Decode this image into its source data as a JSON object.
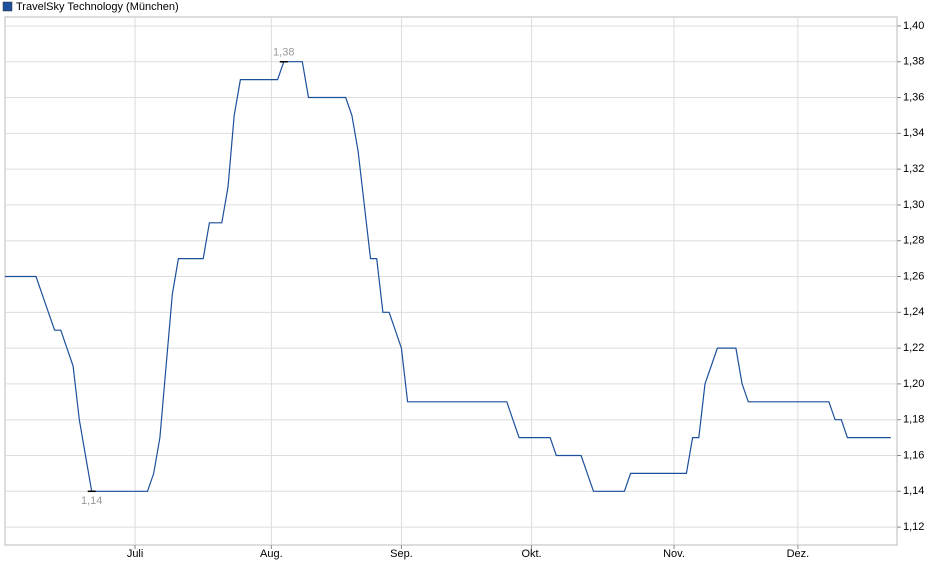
{
  "chart_data": {
    "type": "line",
    "categories": [
      null,
      null,
      null,
      null,
      null,
      null,
      null,
      null,
      null,
      null,
      null,
      null,
      null,
      null,
      null,
      null,
      null,
      null,
      null,
      null,
      null,
      "Juli",
      null,
      null,
      null,
      null,
      null,
      null,
      null,
      null,
      null,
      null,
      null,
      null,
      null,
      null,
      null,
      null,
      null,
      null,
      null,
      null,
      null,
      "Aug.",
      null,
      null,
      null,
      null,
      null,
      null,
      null,
      null,
      null,
      null,
      null,
      null,
      null,
      null,
      null,
      null,
      null,
      null,
      null,
      null,
      "Sep.",
      null,
      null,
      null,
      null,
      null,
      null,
      null,
      null,
      null,
      null,
      null,
      null,
      null,
      null,
      null,
      null,
      null,
      null,
      null,
      null,
      "Okt.",
      null,
      null,
      null,
      null,
      null,
      null,
      null,
      null,
      null,
      null,
      null,
      null,
      null,
      null,
      null,
      null,
      null,
      null,
      null,
      null,
      null,
      null,
      "Nov.",
      null,
      null,
      null,
      null,
      null,
      null,
      null,
      null,
      null,
      null,
      null,
      null,
      null,
      null,
      null,
      null,
      null,
      null,
      null,
      "Dez.",
      null,
      null,
      null,
      null,
      null,
      null,
      null,
      null,
      null,
      null,
      null,
      null,
      null,
      null,
      null
    ],
    "series": [
      {
        "name": "TravelSky Technology (München)",
        "color": "#1c4f9c",
        "values": [
          1.26,
          1.26,
          1.26,
          1.26,
          1.26,
          1.26,
          1.25,
          1.24,
          1.23,
          1.23,
          1.22,
          1.21,
          1.18,
          1.16,
          1.14,
          1.14,
          1.14,
          1.14,
          1.14,
          1.14,
          1.14,
          1.14,
          1.14,
          1.14,
          1.15,
          1.17,
          1.21,
          1.25,
          1.27,
          1.27,
          1.27,
          1.27,
          1.27,
          1.29,
          1.29,
          1.29,
          1.31,
          1.35,
          1.37,
          1.37,
          1.37,
          1.37,
          1.37,
          1.37,
          1.37,
          1.38,
          1.38,
          1.38,
          1.38,
          1.36,
          1.36,
          1.36,
          1.36,
          1.36,
          1.36,
          1.36,
          1.35,
          1.33,
          1.3,
          1.27,
          1.27,
          1.24,
          1.24,
          1.23,
          1.22,
          1.19,
          1.19,
          1.19,
          1.19,
          1.19,
          1.19,
          1.19,
          1.19,
          1.19,
          1.19,
          1.19,
          1.19,
          1.19,
          1.19,
          1.19,
          1.19,
          1.19,
          1.18,
          1.17,
          1.17,
          1.17,
          1.17,
          1.17,
          1.17,
          1.16,
          1.16,
          1.16,
          1.16,
          1.16,
          1.15,
          1.14,
          1.14,
          1.14,
          1.14,
          1.14,
          1.14,
          1.15,
          1.15,
          1.15,
          1.15,
          1.15,
          1.15,
          1.15,
          1.15,
          1.15,
          1.15,
          1.17,
          1.17,
          1.2,
          1.21,
          1.22,
          1.22,
          1.22,
          1.22,
          1.2,
          1.19,
          1.19,
          1.19,
          1.19,
          1.19,
          1.19,
          1.19,
          1.19,
          1.19,
          1.19,
          1.19,
          1.19,
          1.19,
          1.19,
          1.18,
          1.18,
          1.17,
          1.17,
          1.17,
          1.17,
          1.17,
          1.17,
          1.17,
          1.17
        ],
        "value_labels": [
          null,
          null,
          null,
          null,
          null,
          null,
          null,
          null,
          null,
          null,
          null,
          null,
          null,
          null,
          "1,14",
          null,
          null,
          null,
          null,
          null,
          null,
          null,
          null,
          null,
          null,
          null,
          null,
          null,
          null,
          null,
          null,
          null,
          null,
          null,
          null,
          null,
          null,
          null,
          null,
          null,
          null,
          null,
          null,
          null,
          null,
          "1,38",
          null,
          null,
          null,
          null,
          null,
          null,
          null,
          null,
          null,
          null,
          null,
          null,
          null,
          null,
          null,
          null,
          null,
          null,
          null,
          null,
          null,
          null,
          null,
          null,
          null,
          null,
          null,
          null,
          null,
          null,
          null,
          null,
          null,
          null,
          null,
          null,
          null,
          null,
          null,
          null,
          null,
          null,
          null,
          null,
          null,
          null,
          null,
          null,
          null,
          null,
          null,
          null,
          null,
          null,
          null,
          null,
          null,
          null,
          null,
          null,
          null,
          null,
          null,
          null,
          null,
          null,
          null,
          null,
          null,
          null,
          null,
          null,
          null,
          null,
          null,
          null,
          null,
          null,
          null,
          null,
          null,
          null,
          null,
          null,
          null,
          null,
          null,
          null,
          null,
          null,
          null,
          null,
          null,
          null,
          null,
          null,
          null,
          null
        ]
      }
    ],
    "ylim": [
      1.11,
      1.405
    ],
    "yticks": [
      {
        "value": 1.12,
        "label": "1,12"
      },
      {
        "value": 1.14,
        "label": "1,14"
      },
      {
        "value": 1.16,
        "label": "1,16"
      },
      {
        "value": 1.18,
        "label": "1,18"
      },
      {
        "value": 1.2,
        "label": "1,20"
      },
      {
        "value": 1.22,
        "label": "1,22"
      },
      {
        "value": 1.24,
        "label": "1,24"
      },
      {
        "value": 1.26,
        "label": "1,26"
      },
      {
        "value": 1.28,
        "label": "1,28"
      },
      {
        "value": 1.3,
        "label": "1,30"
      },
      {
        "value": 1.32,
        "label": "1,32"
      },
      {
        "value": 1.34,
        "label": "1,34"
      },
      {
        "value": 1.36,
        "label": "1,36"
      },
      {
        "value": 1.38,
        "label": "1,38"
      },
      {
        "value": 1.4,
        "label": "1,40"
      }
    ],
    "grid": true
  }
}
